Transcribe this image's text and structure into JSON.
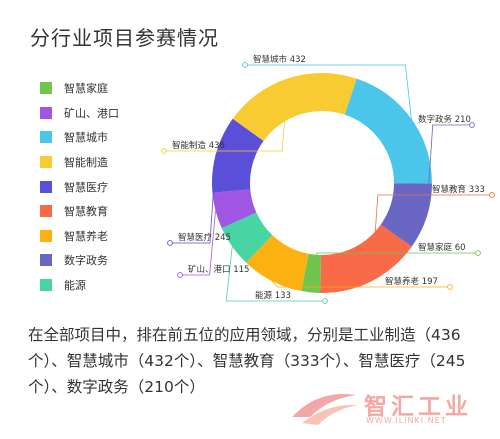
{
  "title": "分行业项目参赛情况",
  "chart_data": {
    "type": "donut",
    "title": "分行业项目参赛情况",
    "legend_position": "left",
    "series": [
      {
        "name": "智慧城市",
        "value": 432,
        "color": "#4bc5ea",
        "label": "智慧城市 432"
      },
      {
        "name": "数字政务",
        "value": 210,
        "color": "#6a67c4",
        "label": "数字政务 210"
      },
      {
        "name": "智慧教育",
        "value": 333,
        "color": "#f86a48",
        "label": "智慧教育 333"
      },
      {
        "name": "智慧家庭",
        "value": 60,
        "color": "#71c44d",
        "label": "智慧家庭 60"
      },
      {
        "name": "智慧养老",
        "value": 197,
        "color": "#fbb110",
        "label": "智慧养老 197"
      },
      {
        "name": "能源",
        "value": 133,
        "color": "#49d5a3",
        "label": "能源 133"
      },
      {
        "name": "矿山、港口",
        "value": 115,
        "color": "#a056e3",
        "label": "矿山、港口 115"
      },
      {
        "name": "智慧医疗",
        "value": 245,
        "color": "#5a4fd8",
        "label": "智慧医疗 245"
      },
      {
        "name": "智能制造",
        "value": 436,
        "color": "#f9cb32",
        "label": "智能制造 436"
      }
    ],
    "legend": [
      {
        "name": "智慧家庭",
        "color": "#71c44d"
      },
      {
        "name": "矿山、港口",
        "color": "#a056e3"
      },
      {
        "name": "智慧城市",
        "color": "#4bc5ea"
      },
      {
        "name": "智能制造",
        "color": "#f9cb32"
      },
      {
        "name": "智慧医疗",
        "color": "#5a4fd8"
      },
      {
        "name": "智慧教育",
        "color": "#f86a48"
      },
      {
        "name": "智慧养老",
        "color": "#fbb110"
      },
      {
        "name": "数字政务",
        "color": "#6a67c4"
      },
      {
        "name": "能源",
        "color": "#49d5a3"
      }
    ]
  },
  "summary": "在全部项目中，排在前五位的应用领域，分别是工业制造（436个）、智慧城市（432个）、智慧教育（333个）、智慧医疗（245个）、数字政务（210个）",
  "watermark": {
    "main": "智汇工业",
    "sub": "WWW.ILINKI.NET"
  }
}
